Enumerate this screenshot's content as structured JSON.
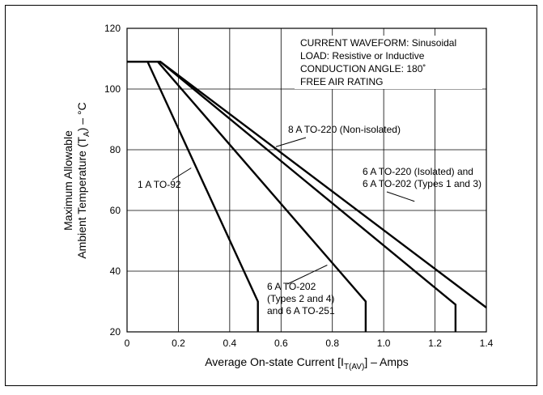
{
  "chart_data": {
    "type": "line",
    "xlabel": "Average On-state Current [I",
    "xlabel_sub": "T(AV)",
    "xlabel_tail": "] – Amps",
    "ylabel_line1": "Maximum Allowable",
    "ylabel_line2": "Ambient Temperature (T",
    "ylabel_sub": "A",
    "ylabel_tail": ") – °C",
    "xlim": [
      0,
      1.4
    ],
    "ylim": [
      20,
      120
    ],
    "x_ticks": [
      {
        "value": 0,
        "label": "0"
      },
      {
        "value": 0.2,
        "label": "0.2"
      },
      {
        "value": 0.4,
        "label": "0.4"
      },
      {
        "value": 0.6,
        "label": "0.6"
      },
      {
        "value": 0.8,
        "label": "0.8"
      },
      {
        "value": 1.0,
        "label": "1.0"
      },
      {
        "value": 1.2,
        "label": "1.2"
      },
      {
        "value": 1.4,
        "label": "1.4"
      }
    ],
    "y_ticks": [
      {
        "value": 20,
        "label": "20"
      },
      {
        "value": 40,
        "label": "40"
      },
      {
        "value": 60,
        "label": "60"
      },
      {
        "value": 80,
        "label": "80"
      },
      {
        "value": 100,
        "label": "100"
      },
      {
        "value": 120,
        "label": "120"
      }
    ],
    "grid": true,
    "conditions": [
      "CURRENT WAVEFORM: Sinusoidal",
      "LOAD: Resistive or Inductive",
      "CONDUCTION ANGLE: 180˚",
      "FREE AIR RATING"
    ],
    "series": [
      {
        "name": "1 A TO-92",
        "points": [
          [
            0,
            109
          ],
          [
            0.08,
            109
          ],
          [
            0.51,
            30
          ],
          [
            0.51,
            20
          ]
        ]
      },
      {
        "name": "6 A TO-202 (Types 2 and 4) and 6 A TO-251",
        "points": [
          [
            0,
            109
          ],
          [
            0.12,
            109
          ],
          [
            0.93,
            30
          ],
          [
            0.93,
            20
          ]
        ]
      },
      {
        "name": "6 A TO-220 (Isolated) and 6 A TO-202 (Types 1 and 3)",
        "points": [
          [
            0,
            109
          ],
          [
            0.13,
            109
          ],
          [
            1.28,
            29
          ],
          [
            1.28,
            20
          ]
        ]
      },
      {
        "name": "8 A TO-220 (Non-isolated)",
        "points": [
          [
            0,
            109
          ],
          [
            0.13,
            109
          ],
          [
            1.4,
            28
          ]
        ]
      }
    ],
    "annotations": [
      {
        "lines": [
          "1 A TO-92"
        ],
        "target": [
          0.25,
          74
        ]
      },
      {
        "lines": [
          "6 A TO-202",
          "(Types 2 and 4)",
          "and 6 A TO-251"
        ],
        "target": [
          0.78,
          42
        ]
      },
      {
        "lines": [
          "6 A TO-220 (Isolated) and",
          "6 A TO-202 (Types 1 and 3)"
        ],
        "target": [
          1.12,
          63
        ]
      },
      {
        "lines": [
          "8 A TO-220 (Non-isolated)"
        ],
        "target": [
          0.58,
          81
        ]
      }
    ]
  }
}
